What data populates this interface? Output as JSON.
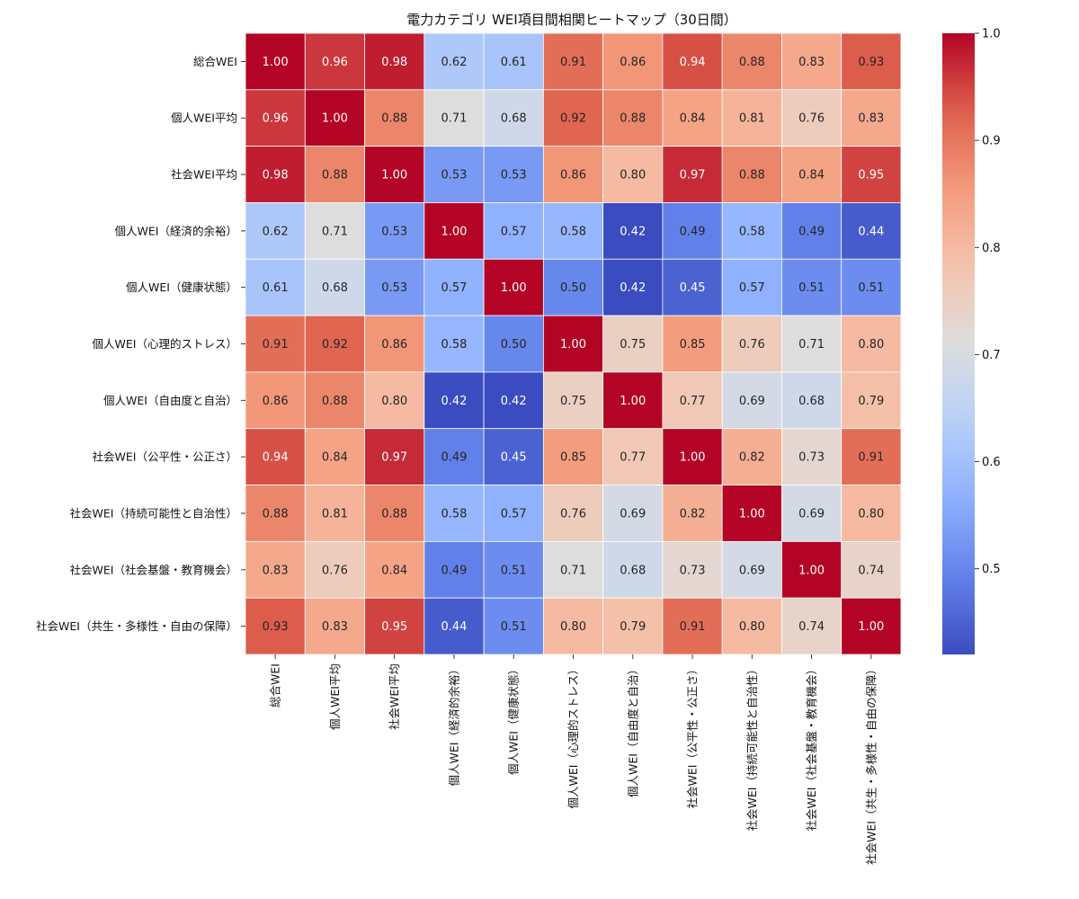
{
  "chart_data": {
    "type": "heatmap",
    "title": "電力カテゴリ WEI項目間相関ヒートマップ（30日間）",
    "xlabel": "",
    "ylabel": "",
    "labels": [
      "総合WEI",
      "個人WEI平均",
      "社会WEI平均",
      "個人WEI（経済的余裕）",
      "個人WEI（健康状態）",
      "個人WEI（心理的ストレス）",
      "個人WEI（自由度と自治）",
      "社会WEI（公平性・公正さ）",
      "社会WEI（持続可能性と自治性）",
      "社会WEI（社会基盤・教育機会）",
      "社会WEI（共生・多様性・自由の保障）"
    ],
    "values": [
      [
        1.0,
        0.96,
        0.98,
        0.62,
        0.61,
        0.91,
        0.86,
        0.94,
        0.88,
        0.83,
        0.93
      ],
      [
        0.96,
        1.0,
        0.88,
        0.71,
        0.68,
        0.92,
        0.88,
        0.84,
        0.81,
        0.76,
        0.83
      ],
      [
        0.98,
        0.88,
        1.0,
        0.53,
        0.53,
        0.86,
        0.8,
        0.97,
        0.88,
        0.84,
        0.95
      ],
      [
        0.62,
        0.71,
        0.53,
        1.0,
        0.57,
        0.58,
        0.42,
        0.49,
        0.58,
        0.49,
        0.44
      ],
      [
        0.61,
        0.68,
        0.53,
        0.57,
        1.0,
        0.5,
        0.42,
        0.45,
        0.57,
        0.51,
        0.51
      ],
      [
        0.91,
        0.92,
        0.86,
        0.58,
        0.5,
        1.0,
        0.75,
        0.85,
        0.76,
        0.71,
        0.8
      ],
      [
        0.86,
        0.88,
        0.8,
        0.42,
        0.42,
        0.75,
        1.0,
        0.77,
        0.69,
        0.68,
        0.79
      ],
      [
        0.94,
        0.84,
        0.97,
        0.49,
        0.45,
        0.85,
        0.77,
        1.0,
        0.82,
        0.73,
        0.91
      ],
      [
        0.88,
        0.81,
        0.88,
        0.58,
        0.57,
        0.76,
        0.69,
        0.82,
        1.0,
        0.69,
        0.8
      ],
      [
        0.83,
        0.76,
        0.84,
        0.49,
        0.51,
        0.71,
        0.68,
        0.73,
        0.69,
        1.0,
        0.74
      ],
      [
        0.93,
        0.83,
        0.95,
        0.44,
        0.51,
        0.8,
        0.79,
        0.91,
        0.8,
        0.74,
        1.0
      ]
    ],
    "colormap": "coolwarm",
    "vmin": 0.42,
    "vmax": 1.0,
    "colorbar_ticks": [
      "0.5",
      "0.6",
      "0.7",
      "0.8",
      "0.9",
      "1.0"
    ],
    "annotations_format": "0.00",
    "grid": false,
    "legend": "colorbar-right"
  }
}
